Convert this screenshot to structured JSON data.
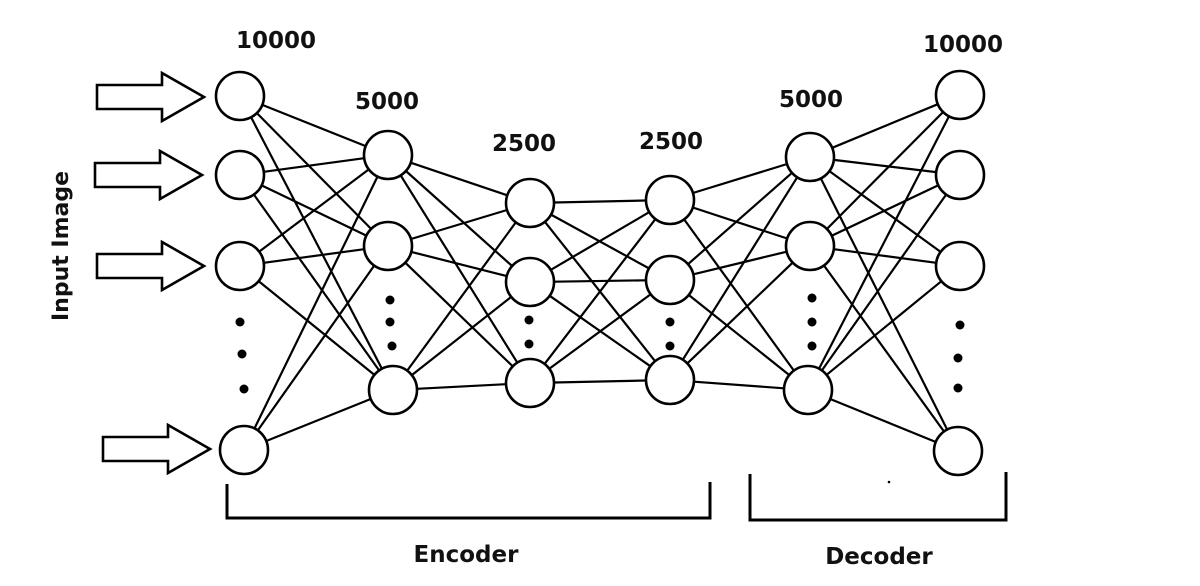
{
  "input_label": "Input Image",
  "layers": [
    {
      "size_label": "10000",
      "role": "input"
    },
    {
      "size_label": "5000",
      "role": "encoder"
    },
    {
      "size_label": "2500",
      "role": "encoder"
    },
    {
      "size_label": "2500",
      "role": "decoder"
    },
    {
      "size_label": "5000",
      "role": "decoder"
    },
    {
      "size_label": "10000",
      "role": "output"
    }
  ],
  "sections": {
    "encoder_label": "Encoder",
    "decoder_label": "Decoder"
  }
}
